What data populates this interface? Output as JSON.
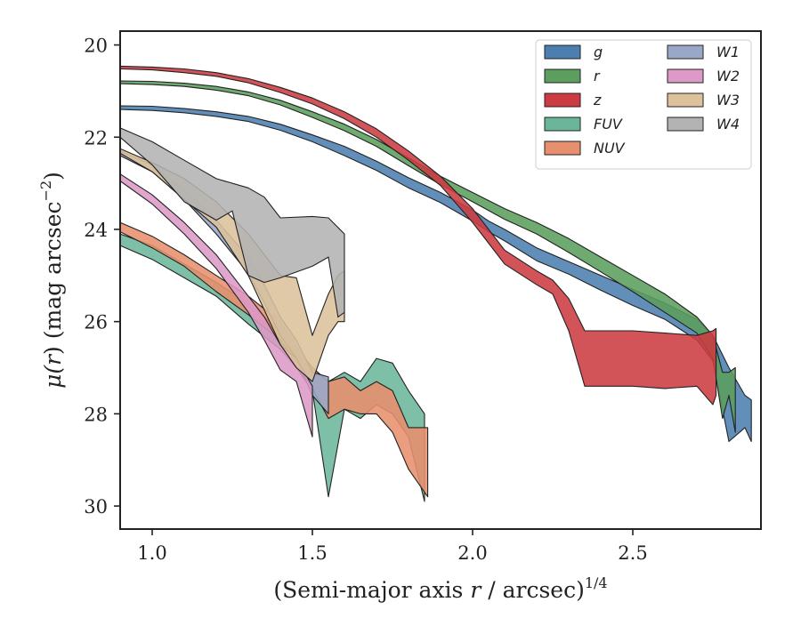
{
  "chart_data": {
    "type": "area",
    "title": "",
    "xlabel": "(Semi-major axis r / arcsec)",
    "xlabel_parts": {
      "prefix": "(Semi-major axis ",
      "var": "r",
      "suffix": " / arcsec)",
      "exponent": "1/4"
    },
    "ylabel": "μ(r) (mag arcsec⁻²)",
    "ylabel_parts": {
      "mu": "μ(",
      "var": "r",
      "mid": ") (mag arcsec",
      "exp": "−2",
      "end": ")"
    },
    "xlim": [
      0.9,
      2.9
    ],
    "ylim": [
      30.5,
      19.7
    ],
    "y_inverted": true,
    "grid": false,
    "legend_position": "top-right",
    "xticks": [
      1.0,
      1.5,
      2.0,
      2.5
    ],
    "xtick_labels": [
      "1.0",
      "1.5",
      "2.0",
      "2.5"
    ],
    "yticks": [
      20,
      22,
      24,
      26,
      28,
      30
    ],
    "ytick_labels": [
      "20",
      "22",
      "24",
      "26",
      "28",
      "30"
    ],
    "series": [
      {
        "name": "g",
        "color": "#4c7fb0",
        "upper": [
          [
            0.9,
            21.32
          ],
          [
            1.0,
            21.33
          ],
          [
            1.1,
            21.38
          ],
          [
            1.2,
            21.45
          ],
          [
            1.3,
            21.55
          ],
          [
            1.4,
            21.72
          ],
          [
            1.5,
            21.95
          ],
          [
            1.6,
            22.2
          ],
          [
            1.7,
            22.52
          ],
          [
            1.8,
            22.88
          ],
          [
            1.9,
            23.2
          ],
          [
            2.0,
            23.58
          ],
          [
            2.05,
            23.82
          ],
          [
            2.1,
            24.0
          ],
          [
            2.2,
            24.4
          ],
          [
            2.3,
            24.7
          ],
          [
            2.4,
            25.0
          ],
          [
            2.5,
            25.3
          ],
          [
            2.6,
            25.6
          ],
          [
            2.7,
            25.95
          ],
          [
            2.75,
            26.3
          ],
          [
            2.8,
            27.0
          ],
          [
            2.85,
            27.6
          ],
          [
            2.87,
            27.7
          ]
        ],
        "lower": [
          [
            0.9,
            21.4
          ],
          [
            1.0,
            21.42
          ],
          [
            1.1,
            21.47
          ],
          [
            1.2,
            21.55
          ],
          [
            1.3,
            21.66
          ],
          [
            1.4,
            21.85
          ],
          [
            1.5,
            22.1
          ],
          [
            1.6,
            22.4
          ],
          [
            1.7,
            22.72
          ],
          [
            1.8,
            23.1
          ],
          [
            1.9,
            23.42
          ],
          [
            2.0,
            23.82
          ],
          [
            2.05,
            24.05
          ],
          [
            2.1,
            24.25
          ],
          [
            2.2,
            24.68
          ],
          [
            2.3,
            24.97
          ],
          [
            2.4,
            25.32
          ],
          [
            2.5,
            25.65
          ],
          [
            2.6,
            25.95
          ],
          [
            2.7,
            26.4
          ],
          [
            2.75,
            26.85
          ],
          [
            2.8,
            28.6
          ],
          [
            2.85,
            28.3
          ],
          [
            2.87,
            28.6
          ]
        ]
      },
      {
        "name": "r",
        "color": "#5b9e5d",
        "upper": [
          [
            0.9,
            20.78
          ],
          [
            1.0,
            20.79
          ],
          [
            1.1,
            20.83
          ],
          [
            1.2,
            20.9
          ],
          [
            1.3,
            21.02
          ],
          [
            1.4,
            21.2
          ],
          [
            1.5,
            21.45
          ],
          [
            1.6,
            21.72
          ],
          [
            1.7,
            22.05
          ],
          [
            1.8,
            22.45
          ],
          [
            1.9,
            22.85
          ],
          [
            2.0,
            23.2
          ],
          [
            2.1,
            23.55
          ],
          [
            2.2,
            23.85
          ],
          [
            2.3,
            24.2
          ],
          [
            2.4,
            24.6
          ],
          [
            2.5,
            25.0
          ],
          [
            2.6,
            25.4
          ],
          [
            2.7,
            25.9
          ],
          [
            2.75,
            26.3
          ],
          [
            2.78,
            27.1
          ],
          [
            2.8,
            27.1
          ],
          [
            2.82,
            27.0
          ]
        ],
        "lower": [
          [
            0.9,
            20.84
          ],
          [
            1.0,
            20.86
          ],
          [
            1.1,
            20.9
          ],
          [
            1.2,
            20.98
          ],
          [
            1.3,
            21.1
          ],
          [
            1.4,
            21.3
          ],
          [
            1.5,
            21.57
          ],
          [
            1.6,
            21.86
          ],
          [
            1.7,
            22.2
          ],
          [
            1.8,
            22.62
          ],
          [
            1.9,
            23.03
          ],
          [
            2.0,
            23.4
          ],
          [
            2.1,
            23.78
          ],
          [
            2.2,
            24.1
          ],
          [
            2.3,
            24.5
          ],
          [
            2.4,
            24.92
          ],
          [
            2.5,
            25.35
          ],
          [
            2.6,
            25.8
          ],
          [
            2.7,
            26.25
          ],
          [
            2.75,
            26.8
          ],
          [
            2.78,
            28.1
          ],
          [
            2.8,
            27.6
          ],
          [
            2.82,
            28.4
          ]
        ]
      },
      {
        "name": "z",
        "color": "#cc3b41",
        "upper": [
          [
            0.9,
            20.46
          ],
          [
            1.0,
            20.48
          ],
          [
            1.1,
            20.52
          ],
          [
            1.2,
            20.6
          ],
          [
            1.3,
            20.73
          ],
          [
            1.4,
            20.92
          ],
          [
            1.5,
            21.15
          ],
          [
            1.6,
            21.45
          ],
          [
            1.7,
            21.82
          ],
          [
            1.8,
            22.3
          ],
          [
            1.9,
            22.85
          ],
          [
            2.0,
            23.55
          ],
          [
            2.05,
            24.0
          ],
          [
            2.1,
            24.45
          ],
          [
            2.2,
            24.9
          ],
          [
            2.25,
            25.1
          ],
          [
            2.3,
            25.5
          ],
          [
            2.35,
            26.2
          ],
          [
            2.5,
            26.2
          ],
          [
            2.6,
            26.25
          ],
          [
            2.7,
            26.3
          ],
          [
            2.75,
            26.2
          ],
          [
            2.76,
            26.15
          ]
        ],
        "lower": [
          [
            0.9,
            20.52
          ],
          [
            1.0,
            20.54
          ],
          [
            1.1,
            20.6
          ],
          [
            1.2,
            20.68
          ],
          [
            1.3,
            20.82
          ],
          [
            1.4,
            21.03
          ],
          [
            1.5,
            21.28
          ],
          [
            1.6,
            21.6
          ],
          [
            1.7,
            22.0
          ],
          [
            1.8,
            22.5
          ],
          [
            1.9,
            23.05
          ],
          [
            2.0,
            23.85
          ],
          [
            2.05,
            24.3
          ],
          [
            2.1,
            24.75
          ],
          [
            2.2,
            25.2
          ],
          [
            2.25,
            25.4
          ],
          [
            2.3,
            26.2
          ],
          [
            2.35,
            27.4
          ],
          [
            2.5,
            27.4
          ],
          [
            2.6,
            27.45
          ],
          [
            2.7,
            27.4
          ],
          [
            2.75,
            27.8
          ],
          [
            2.76,
            27.6
          ]
        ]
      },
      {
        "name": "FUV",
        "color": "#6bb69b",
        "upper": [
          [
            0.9,
            24.1
          ],
          [
            1.0,
            24.35
          ],
          [
            1.1,
            24.75
          ],
          [
            1.2,
            25.15
          ],
          [
            1.3,
            25.6
          ],
          [
            1.4,
            26.2
          ],
          [
            1.45,
            26.6
          ],
          [
            1.5,
            27.0
          ],
          [
            1.55,
            27.3
          ],
          [
            1.6,
            27.1
          ],
          [
            1.65,
            27.3
          ],
          [
            1.7,
            26.8
          ],
          [
            1.75,
            26.9
          ],
          [
            1.8,
            27.5
          ],
          [
            1.85,
            28.0
          ]
        ],
        "lower": [
          [
            0.9,
            24.35
          ],
          [
            1.0,
            24.65
          ],
          [
            1.1,
            25.05
          ],
          [
            1.2,
            25.45
          ],
          [
            1.3,
            26.05
          ],
          [
            1.4,
            26.6
          ],
          [
            1.45,
            27.0
          ],
          [
            1.5,
            27.5
          ],
          [
            1.55,
            29.8
          ],
          [
            1.6,
            27.9
          ],
          [
            1.65,
            28.1
          ],
          [
            1.7,
            27.8
          ],
          [
            1.75,
            28.0
          ],
          [
            1.8,
            28.5
          ],
          [
            1.85,
            29.9
          ]
        ]
      },
      {
        "name": "NUV",
        "color": "#e88f6d",
        "upper": [
          [
            0.9,
            23.85
          ],
          [
            1.0,
            24.15
          ],
          [
            1.1,
            24.55
          ],
          [
            1.2,
            25.0
          ],
          [
            1.3,
            25.45
          ],
          [
            1.4,
            26.0
          ],
          [
            1.45,
            26.55
          ],
          [
            1.5,
            27.0
          ],
          [
            1.55,
            27.3
          ],
          [
            1.6,
            27.2
          ],
          [
            1.65,
            27.5
          ],
          [
            1.7,
            27.3
          ],
          [
            1.75,
            27.5
          ],
          [
            1.8,
            28.3
          ],
          [
            1.86,
            28.3
          ]
        ],
        "lower": [
          [
            0.9,
            24.05
          ],
          [
            1.0,
            24.4
          ],
          [
            1.1,
            24.8
          ],
          [
            1.2,
            25.35
          ],
          [
            1.3,
            25.85
          ],
          [
            1.4,
            26.4
          ],
          [
            1.45,
            26.9
          ],
          [
            1.5,
            27.45
          ],
          [
            1.55,
            28.1
          ],
          [
            1.6,
            27.9
          ],
          [
            1.65,
            28.0
          ],
          [
            1.7,
            28.0
          ],
          [
            1.75,
            28.4
          ],
          [
            1.8,
            29.2
          ],
          [
            1.86,
            29.8
          ]
        ]
      },
      {
        "name": "W1",
        "color": "#9aa8c8",
        "upper": [
          [
            0.9,
            22.3
          ],
          [
            1.0,
            22.6
          ],
          [
            1.1,
            23.15
          ],
          [
            1.2,
            23.8
          ],
          [
            1.3,
            24.6
          ],
          [
            1.35,
            25.2
          ],
          [
            1.4,
            25.9
          ],
          [
            1.45,
            26.4
          ],
          [
            1.5,
            27.1
          ],
          [
            1.55,
            27.2
          ]
        ],
        "lower": [
          [
            0.9,
            22.4
          ],
          [
            1.0,
            22.75
          ],
          [
            1.1,
            23.35
          ],
          [
            1.2,
            24.1
          ],
          [
            1.3,
            24.95
          ],
          [
            1.35,
            25.6
          ],
          [
            1.4,
            26.3
          ],
          [
            1.45,
            26.8
          ],
          [
            1.5,
            27.6
          ],
          [
            1.55,
            28.0
          ]
        ]
      },
      {
        "name": "W2",
        "color": "#dd9ac6",
        "upper": [
          [
            0.9,
            22.8
          ],
          [
            1.0,
            23.25
          ],
          [
            1.1,
            23.85
          ],
          [
            1.2,
            24.55
          ],
          [
            1.3,
            25.45
          ],
          [
            1.35,
            25.9
          ],
          [
            1.4,
            26.5
          ],
          [
            1.45,
            26.8
          ],
          [
            1.5,
            27.4
          ]
        ],
        "lower": [
          [
            0.9,
            22.95
          ],
          [
            1.0,
            23.45
          ],
          [
            1.1,
            24.1
          ],
          [
            1.2,
            24.85
          ],
          [
            1.3,
            25.8
          ],
          [
            1.35,
            26.4
          ],
          [
            1.4,
            27.05
          ],
          [
            1.45,
            27.3
          ],
          [
            1.5,
            28.5
          ]
        ]
      },
      {
        "name": "W3",
        "color": "#dcc19b",
        "upper": [
          [
            0.9,
            22.25
          ],
          [
            1.0,
            22.55
          ],
          [
            1.1,
            22.9
          ],
          [
            1.2,
            23.4
          ],
          [
            1.3,
            24.1
          ],
          [
            1.4,
            25.0
          ],
          [
            1.45,
            25.05
          ],
          [
            1.5,
            26.3
          ],
          [
            1.55,
            25.4
          ],
          [
            1.58,
            25.0
          ],
          [
            1.6,
            24.9
          ]
        ],
        "lower": [
          [
            0.9,
            22.35
          ],
          [
            1.0,
            22.75
          ],
          [
            1.1,
            23.35
          ],
          [
            1.2,
            23.95
          ],
          [
            1.3,
            25.0
          ],
          [
            1.4,
            26.5
          ],
          [
            1.45,
            27.0
          ],
          [
            1.5,
            27.3
          ],
          [
            1.55,
            26.3
          ],
          [
            1.58,
            26.0
          ],
          [
            1.6,
            26.0
          ]
        ]
      },
      {
        "name": "W4",
        "color": "#b3b3b3",
        "upper": [
          [
            0.9,
            21.8
          ],
          [
            1.0,
            22.1
          ],
          [
            1.1,
            22.5
          ],
          [
            1.2,
            22.9
          ],
          [
            1.3,
            23.1
          ],
          [
            1.35,
            23.3
          ],
          [
            1.4,
            23.75
          ],
          [
            1.5,
            23.72
          ],
          [
            1.55,
            23.75
          ],
          [
            1.6,
            24.1
          ]
        ],
        "lower": [
          [
            0.9,
            22.0
          ],
          [
            1.0,
            22.6
          ],
          [
            1.1,
            23.4
          ],
          [
            1.2,
            23.8
          ],
          [
            1.25,
            23.6
          ],
          [
            1.3,
            25.0
          ],
          [
            1.35,
            25.15
          ],
          [
            1.4,
            25.05
          ],
          [
            1.5,
            24.8
          ],
          [
            1.55,
            24.6
          ],
          [
            1.58,
            25.9
          ],
          [
            1.6,
            25.8
          ]
        ]
      }
    ]
  }
}
